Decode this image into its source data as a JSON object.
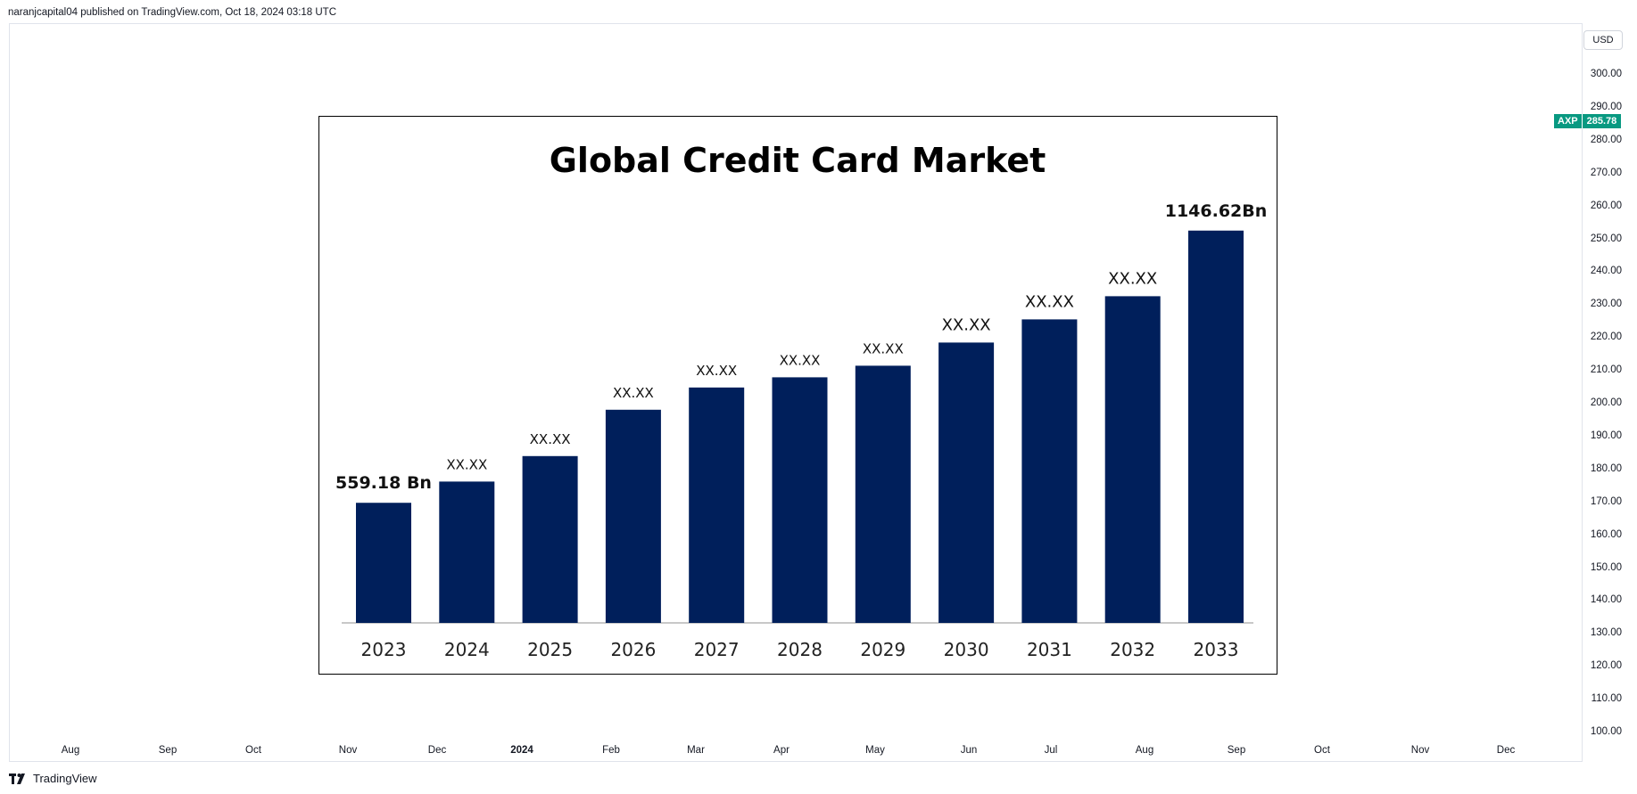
{
  "header": {
    "publish_line": "naranjcapital04 published on TradingView.com, Oct 18, 2024 03:18 UTC"
  },
  "price_axis": {
    "currency": "USD",
    "ticks": [
      "300.00",
      "290.00",
      "280.00",
      "270.00",
      "260.00",
      "250.00",
      "240.00",
      "230.00",
      "220.00",
      "210.00",
      "200.00",
      "190.00",
      "180.00",
      "170.00",
      "160.00",
      "150.00",
      "140.00",
      "130.00",
      "120.00",
      "110.00",
      "100.00"
    ],
    "ticker_symbol": "AXP",
    "last_price": "285.78",
    "tag_color": "#089981"
  },
  "time_axis": {
    "labels": [
      "Aug",
      "Sep",
      "Oct",
      "Nov",
      "Dec",
      "2024",
      "Feb",
      "Mar",
      "Apr",
      "May",
      "Jun",
      "Jul",
      "Aug",
      "Sep",
      "Oct",
      "Nov",
      "Dec"
    ],
    "bold_label": "2024"
  },
  "footer": {
    "logo_icon": "tradingview-logo-icon",
    "logo_text": "TradingView"
  },
  "chart_data": {
    "type": "bar",
    "title": "Global Credit Card Market",
    "categories": [
      "2023",
      "2024",
      "2025",
      "2026",
      "2027",
      "2028",
      "2029",
      "2030",
      "2031",
      "2032",
      "2033"
    ],
    "values": [
      559.18,
      605,
      660,
      760,
      808,
      830,
      855,
      905,
      955,
      1005,
      1146.62
    ],
    "data_labels": [
      "559.18 Bn",
      "XX.XX",
      "XX.XX",
      "XX.XX",
      "XX.XX",
      "XX.XX",
      "XX.XX",
      "XX.XX",
      "XX.XX",
      "XX.XX",
      "1146.62Bn"
    ],
    "bar_color": "#001f5b",
    "xlabel": "",
    "ylabel": "",
    "ylim": [
      300,
      1200
    ]
  }
}
